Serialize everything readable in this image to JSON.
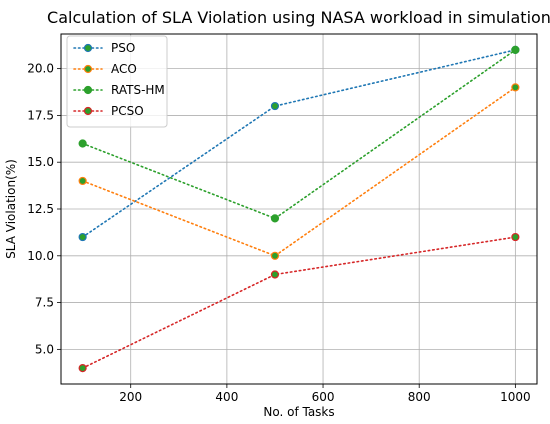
{
  "chart_data": {
    "type": "line",
    "title": "Calculation of SLA Violation using NASA workload in simulation",
    "xlabel": "No. of Tasks",
    "ylabel": "SLA Violation(%)",
    "x": [
      100,
      500,
      1000
    ],
    "xlim": [
      55,
      1045
    ],
    "ylim": [
      3.15,
      21.85
    ],
    "xticks": [
      200,
      400,
      600,
      800,
      1000
    ],
    "xtick_labels": [
      "200",
      "400",
      "600",
      "800",
      "1000"
    ],
    "yticks": [
      5.0,
      7.5,
      10.0,
      12.5,
      15.0,
      17.5,
      20.0
    ],
    "ytick_labels": [
      "5.0",
      "7.5",
      "10.0",
      "12.5",
      "15.0",
      "17.5",
      "20.0"
    ],
    "grid": true,
    "legend_position": "top-left",
    "series": [
      {
        "name": "PSO",
        "values": [
          11,
          18,
          21
        ],
        "line_color": "#1f77b4",
        "marker_color": "#2ca02c",
        "marker_edge": "#1f77b4",
        "line_style": "dotted"
      },
      {
        "name": "ACO",
        "values": [
          14,
          10,
          19
        ],
        "line_color": "#ff7f0e",
        "marker_color": "#2ca02c",
        "marker_edge": "#ff7f0e",
        "line_style": "dotted"
      },
      {
        "name": "RATS-HM",
        "values": [
          16,
          12,
          21
        ],
        "line_color": "#2ca02c",
        "marker_color": "#2ca02c",
        "marker_edge": "#2ca02c",
        "line_style": "dotted"
      },
      {
        "name": "PCSO",
        "values": [
          4,
          9,
          11
        ],
        "line_color": "#d62728",
        "marker_color": "#2ca02c",
        "marker_edge": "#d62728",
        "line_style": "dotted"
      }
    ]
  }
}
